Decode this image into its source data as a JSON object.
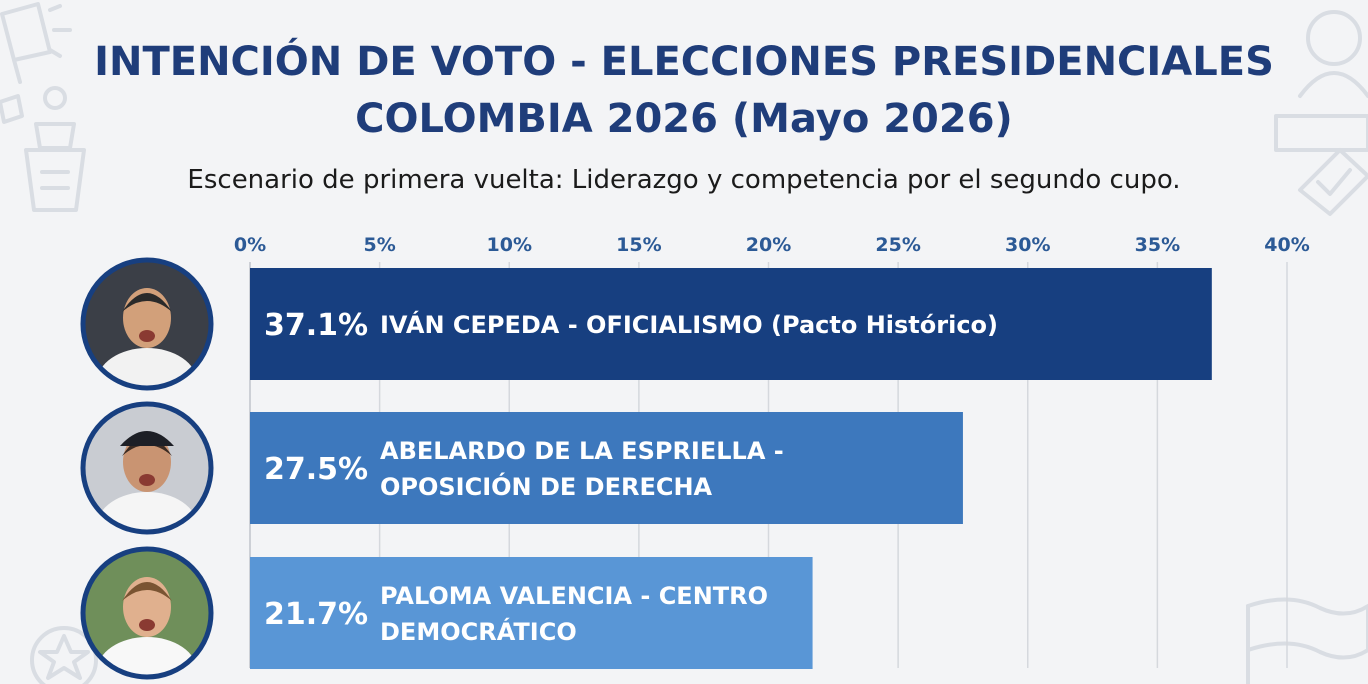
{
  "header": {
    "title_line1": "INTENCIÓN DE VOTO - ELECCIONES PRESIDENCIALES",
    "title_line2": "COLOMBIA 2026 (Mayo 2026)",
    "subtitle": "Escenario de primera vuelta: Liderazgo y competencia por el segundo cupo."
  },
  "chart_data": {
    "type": "bar",
    "orientation": "horizontal",
    "title": "INTENCIÓN DE VOTO - ELECCIONES PRESIDENCIALES COLOMBIA 2026 (Mayo 2026)",
    "subtitle": "Escenario de primera vuelta: Liderazgo y competencia por el segundo cupo.",
    "xlim": [
      0,
      40
    ],
    "x_ticks": [
      "0%",
      "5%",
      "10%",
      "15%",
      "20%",
      "25%",
      "30%",
      "35%",
      "40%"
    ],
    "x_axis_position": "top",
    "grid": true,
    "categories": [
      {
        "value": 37.1,
        "value_label": "37.1%",
        "label_lines": [
          "IVÁN CEPEDA - OFICIALISMO (Pacto Histórico)"
        ],
        "color": "#173f80"
      },
      {
        "value": 27.5,
        "value_label": "27.5%",
        "label_lines": [
          "ABELARDO DE LA ESPRIELLA -",
          "OPOSICIÓN DE DERECHA"
        ],
        "color": "#3d78bd"
      },
      {
        "value": 21.7,
        "value_label": "21.7%",
        "label_lines": [
          "PALOMA VALENCIA - CENTRO",
          "DEMOCRÁTICO"
        ],
        "color": "#5996d6"
      }
    ]
  },
  "colors": {
    "title": "#1f3d7a",
    "tick": "#2c5a96",
    "grid": "#d5d8dd",
    "avatar_ring": "#173f80"
  },
  "icons": [
    "megaphone-icon",
    "podium-icon",
    "person-icon",
    "ballot-box-icon",
    "star-icon",
    "flag-icon",
    "avatar-photo"
  ]
}
